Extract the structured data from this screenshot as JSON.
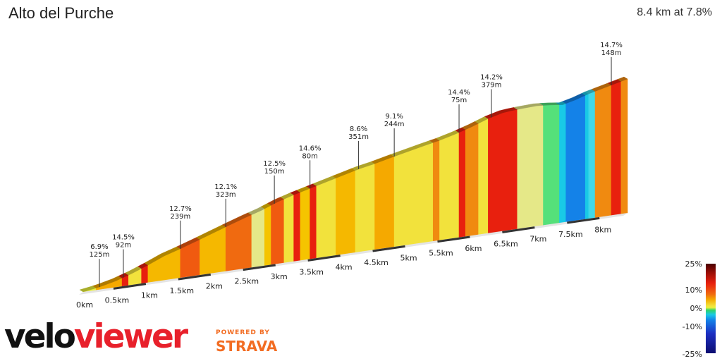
{
  "title": "Alto del Purche",
  "summary": "8.4 km at 7.8%",
  "brand": {
    "velo": "velo",
    "viewer": "viewer",
    "powered_by": "POWERED BY",
    "strava": "STRAVA"
  },
  "scale": {
    "labels": [
      "25%",
      "10%",
      "0%",
      "-10%",
      "-25%"
    ]
  },
  "chart_data": {
    "type": "area",
    "title": "Alto del Purche",
    "subtitle": "8.4 km at 7.8%",
    "xlim": [
      0,
      8.4
    ],
    "x_ticks": [
      "0km",
      "0.5km",
      "1km",
      "1.5km",
      "2km",
      "2.5km",
      "3km",
      "3.5km",
      "4km",
      "4.5km",
      "5km",
      "5.5km",
      "6km",
      "6.5km",
      "7km",
      "7.5km",
      "8km"
    ],
    "profile": [
      {
        "km": 0.0,
        "elev": 0
      },
      {
        "km": 0.25,
        "elev": 12
      },
      {
        "km": 0.5,
        "elev": 30
      },
      {
        "km": 0.75,
        "elev": 55
      },
      {
        "km": 1.0,
        "elev": 85
      },
      {
        "km": 1.25,
        "elev": 118
      },
      {
        "km": 1.5,
        "elev": 142
      },
      {
        "km": 1.75,
        "elev": 168
      },
      {
        "km": 2.0,
        "elev": 195
      },
      {
        "km": 2.25,
        "elev": 222
      },
      {
        "km": 2.5,
        "elev": 248
      },
      {
        "km": 2.75,
        "elev": 272
      },
      {
        "km": 3.0,
        "elev": 302
      },
      {
        "km": 3.25,
        "elev": 325
      },
      {
        "km": 3.5,
        "elev": 345
      },
      {
        "km": 3.75,
        "elev": 365
      },
      {
        "km": 4.0,
        "elev": 385
      },
      {
        "km": 4.25,
        "elev": 405
      },
      {
        "km": 4.5,
        "elev": 420
      },
      {
        "km": 4.75,
        "elev": 438
      },
      {
        "km": 5.0,
        "elev": 455
      },
      {
        "km": 5.25,
        "elev": 472
      },
      {
        "km": 5.5,
        "elev": 488
      },
      {
        "km": 5.75,
        "elev": 508
      },
      {
        "km": 6.0,
        "elev": 532
      },
      {
        "km": 6.25,
        "elev": 560
      },
      {
        "km": 6.5,
        "elev": 580
      },
      {
        "km": 6.75,
        "elev": 585
      },
      {
        "km": 7.0,
        "elev": 588
      },
      {
        "km": 7.2,
        "elev": 583
      },
      {
        "km": 7.4,
        "elev": 575
      },
      {
        "km": 7.6,
        "elev": 590
      },
      {
        "km": 7.8,
        "elev": 610
      },
      {
        "km": 8.0,
        "elev": 625
      },
      {
        "km": 8.2,
        "elev": 640
      },
      {
        "km": 8.4,
        "elev": 655
      }
    ],
    "segments": [
      {
        "start": 0.0,
        "end": 0.2,
        "gradient": 4,
        "color": "#eaf03c"
      },
      {
        "start": 0.2,
        "end": 0.6,
        "gradient": 7,
        "color": "#f5a900"
      },
      {
        "start": 0.6,
        "end": 0.7,
        "gradient": 14.5,
        "color": "#e8200e"
      },
      {
        "start": 0.7,
        "end": 0.9,
        "gradient": 6,
        "color": "#f2e23c"
      },
      {
        "start": 0.9,
        "end": 1.0,
        "gradient": 13,
        "color": "#e8200e"
      },
      {
        "start": 1.0,
        "end": 1.5,
        "gradient": 8,
        "color": "#f5b800"
      },
      {
        "start": 1.5,
        "end": 1.8,
        "gradient": 12.7,
        "color": "#f05a10"
      },
      {
        "start": 1.8,
        "end": 2.2,
        "gradient": 9,
        "color": "#f5b800"
      },
      {
        "start": 2.2,
        "end": 2.6,
        "gradient": 12.1,
        "color": "#f06a10"
      },
      {
        "start": 2.6,
        "end": 2.8,
        "gradient": 5,
        "color": "#e5e888"
      },
      {
        "start": 2.8,
        "end": 2.9,
        "gradient": 9,
        "color": "#f5c400"
      },
      {
        "start": 2.9,
        "end": 3.1,
        "gradient": 12.5,
        "color": "#f05a10"
      },
      {
        "start": 3.1,
        "end": 3.25,
        "gradient": 6,
        "color": "#f2e23c"
      },
      {
        "start": 3.25,
        "end": 3.35,
        "gradient": 12,
        "color": "#e8200e"
      },
      {
        "start": 3.35,
        "end": 3.5,
        "gradient": 8,
        "color": "#f5c400"
      },
      {
        "start": 3.5,
        "end": 3.6,
        "gradient": 14.6,
        "color": "#e8200e"
      },
      {
        "start": 3.6,
        "end": 3.9,
        "gradient": 7,
        "color": "#f2e23c"
      },
      {
        "start": 3.9,
        "end": 4.2,
        "gradient": 8.6,
        "color": "#f5b800"
      },
      {
        "start": 4.2,
        "end": 4.5,
        "gradient": 6,
        "color": "#f2e23c"
      },
      {
        "start": 4.5,
        "end": 4.8,
        "gradient": 9.1,
        "color": "#f5a900"
      },
      {
        "start": 4.8,
        "end": 5.4,
        "gradient": 6,
        "color": "#f2e23c"
      },
      {
        "start": 5.4,
        "end": 5.5,
        "gradient": 10,
        "color": "#f08a10"
      },
      {
        "start": 5.5,
        "end": 5.8,
        "gradient": 6,
        "color": "#f2e23c"
      },
      {
        "start": 5.8,
        "end": 5.9,
        "gradient": 14.4,
        "color": "#e8200e"
      },
      {
        "start": 5.9,
        "end": 6.1,
        "gradient": 9,
        "color": "#f08a10"
      },
      {
        "start": 6.1,
        "end": 6.25,
        "gradient": 6,
        "color": "#f2e23c"
      },
      {
        "start": 6.25,
        "end": 6.7,
        "gradient": 14.2,
        "color": "#e8200e"
      },
      {
        "start": 6.7,
        "end": 7.1,
        "gradient": 3,
        "color": "#e5e888"
      },
      {
        "start": 7.1,
        "end": 7.35,
        "gradient": 1,
        "color": "#55e07a"
      },
      {
        "start": 7.35,
        "end": 7.45,
        "gradient": -2,
        "color": "#19c9e6"
      },
      {
        "start": 7.45,
        "end": 7.75,
        "gradient": -5,
        "color": "#1482e8"
      },
      {
        "start": 7.75,
        "end": 7.8,
        "gradient": -3,
        "color": "#19c9e6"
      },
      {
        "start": 7.8,
        "end": 7.9,
        "gradient": -2,
        "color": "#40d8e8"
      },
      {
        "start": 7.9,
        "end": 8.15,
        "gradient": 9,
        "color": "#f08a10"
      },
      {
        "start": 8.15,
        "end": 8.3,
        "gradient": 14.7,
        "color": "#e8200e"
      },
      {
        "start": 8.3,
        "end": 8.4,
        "gradient": 9,
        "color": "#f08a10"
      }
    ],
    "annotations": [
      {
        "km": 0.25,
        "grade": "6.9%",
        "length": "125m"
      },
      {
        "km": 0.62,
        "grade": "14.5%",
        "length": "92m"
      },
      {
        "km": 1.5,
        "grade": "12.7%",
        "length": "239m"
      },
      {
        "km": 2.2,
        "grade": "12.1%",
        "length": "323m"
      },
      {
        "km": 2.95,
        "grade": "12.5%",
        "length": "150m"
      },
      {
        "km": 3.5,
        "grade": "14.6%",
        "length": "80m"
      },
      {
        "km": 4.25,
        "grade": "8.6%",
        "length": "351m"
      },
      {
        "km": 4.8,
        "grade": "9.1%",
        "length": "244m"
      },
      {
        "km": 5.8,
        "grade": "14.4%",
        "length": "75m"
      },
      {
        "km": 6.3,
        "grade": "14.2%",
        "length": "379m"
      },
      {
        "km": 8.15,
        "grade": "14.7%",
        "length": "148m"
      }
    ]
  }
}
